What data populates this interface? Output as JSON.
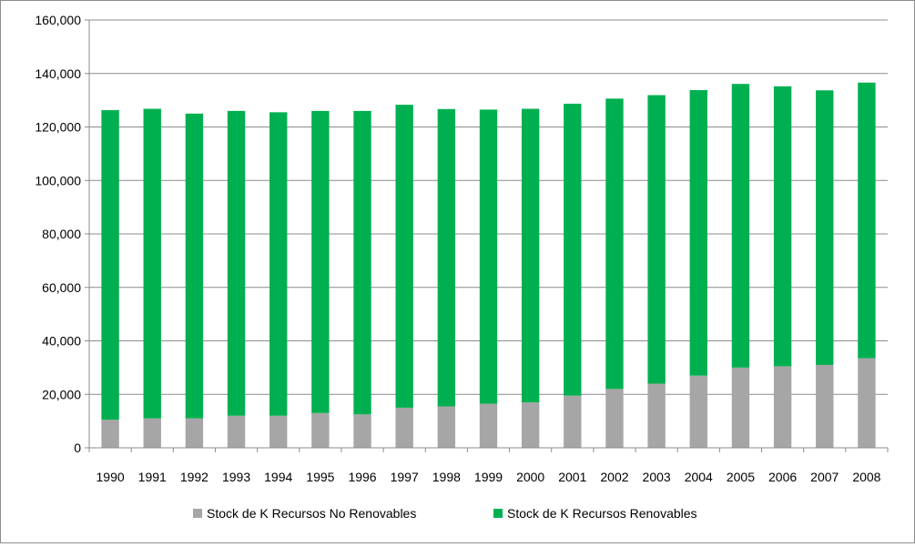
{
  "chart_data": {
    "type": "bar",
    "stacked": true,
    "categories": [
      "1990",
      "1991",
      "1992",
      "1993",
      "1994",
      "1995",
      "1996",
      "1997",
      "1998",
      "1999",
      "2000",
      "2001",
      "2002",
      "2003",
      "2004",
      "2005",
      "2006",
      "2007",
      "2008"
    ],
    "series": [
      {
        "name": "Stock de K Recursos No Renovables",
        "color": "#a6a6a6",
        "values": [
          10500,
          11000,
          11000,
          12000,
          12000,
          13000,
          12500,
          15000,
          15500,
          16500,
          17000,
          19500,
          22000,
          24000,
          27000,
          30000,
          30500,
          31000,
          33500
        ]
      },
      {
        "name": "Stock de K Recursos Renovables",
        "color": "#00b050",
        "values": [
          115800,
          115800,
          114000,
          114000,
          113500,
          113000,
          113500,
          113300,
          111200,
          110000,
          109800,
          109200,
          108600,
          107900,
          106800,
          106100,
          104700,
          102700,
          103100
        ]
      }
    ],
    "ylim": [
      0,
      160000
    ],
    "yticks": [
      "0",
      "20,000",
      "40,000",
      "60,000",
      "80,000",
      "100,000",
      "120,000",
      "140,000",
      "160,000"
    ],
    "ytick_values": [
      0,
      20000,
      40000,
      60000,
      80000,
      100000,
      120000,
      140000,
      160000
    ],
    "grid": "horizontal",
    "legend_position": "bottom",
    "title": "",
    "xlabel": "",
    "ylabel": ""
  }
}
